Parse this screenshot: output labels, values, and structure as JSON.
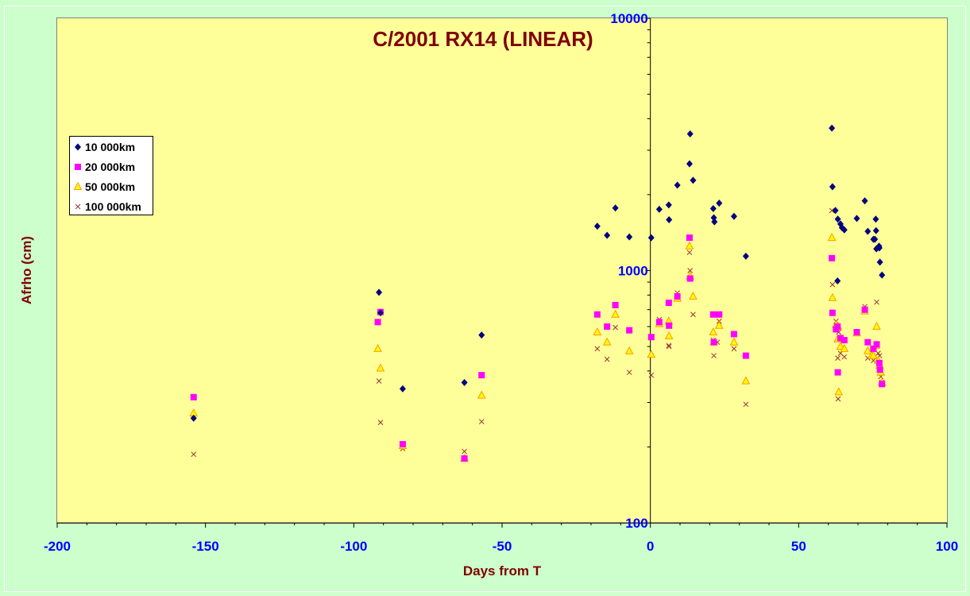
{
  "chart_data": {
    "type": "scatter",
    "title": "C/2001 RX14 (LINEAR)",
    "xlabel": "Days from T",
    "ylabel": "Afrho (cm)",
    "xlim": [
      -200,
      100
    ],
    "ylim": [
      100,
      10000
    ],
    "y_scale": "log",
    "x_ticks": [
      -200,
      -150,
      -100,
      -50,
      0,
      50,
      100
    ],
    "x_tick_labels": [
      "-200",
      "-150",
      "-100",
      "-50",
      "0",
      "50",
      "100"
    ],
    "y_ticks": [
      100,
      1000,
      10000
    ],
    "y_tick_labels": [
      "100",
      "1000",
      "10000"
    ],
    "grid": false,
    "legend_position": "left",
    "plot_background": "#ffff99",
    "figure_background": "#ccffcc",
    "series": [
      {
        "name": "10 000km",
        "marker": "diamond",
        "color": "#000080",
        "points": [
          [
            -154,
            260
          ],
          [
            -91.5,
            820
          ],
          [
            -91,
            680
          ],
          [
            -83.5,
            340
          ],
          [
            -62.7,
            360
          ],
          [
            -56.9,
            555
          ],
          [
            -17.9,
            1500
          ],
          [
            -14.6,
            1380
          ],
          [
            -11.8,
            1770
          ],
          [
            -7.1,
            1360
          ],
          [
            0.3,
            1350
          ],
          [
            3,
            1750
          ],
          [
            6.2,
            1820
          ],
          [
            6.3,
            1590
          ],
          [
            9.1,
            2180
          ],
          [
            13.2,
            2650
          ],
          [
            13.4,
            3480
          ],
          [
            14.4,
            2280
          ],
          [
            21.2,
            1760
          ],
          [
            21.4,
            1620
          ],
          [
            21.6,
            1560
          ],
          [
            23.2,
            1850
          ],
          [
            28.2,
            1640
          ],
          [
            32.2,
            1140
          ],
          [
            61.2,
            3670
          ],
          [
            61.4,
            2150
          ],
          [
            62.4,
            1730
          ],
          [
            63.1,
            910
          ],
          [
            63.2,
            1600
          ],
          [
            64.1,
            1530
          ],
          [
            64.6,
            1480
          ],
          [
            65.4,
            1450
          ],
          [
            69.6,
            1610
          ],
          [
            72.3,
            1890
          ],
          [
            73.3,
            1430
          ],
          [
            75.2,
            1330
          ],
          [
            75.7,
            1330
          ],
          [
            76,
            1600
          ],
          [
            76.1,
            1440
          ],
          [
            76.2,
            1220
          ],
          [
            77.1,
            1250
          ],
          [
            77.2,
            1230
          ],
          [
            77.4,
            1080
          ],
          [
            78.1,
            960
          ]
        ]
      },
      {
        "name": "20 000km",
        "marker": "square",
        "color": "#ff00ff",
        "points": [
          [
            -154,
            315
          ],
          [
            -91.9,
            625
          ],
          [
            -91,
            685
          ],
          [
            -83.5,
            205
          ],
          [
            -62.7,
            180
          ],
          [
            -56.9,
            385
          ],
          [
            -17.9,
            670
          ],
          [
            -14.6,
            600
          ],
          [
            -11.8,
            730
          ],
          [
            -7.1,
            580
          ],
          [
            0.3,
            545
          ],
          [
            3,
            625
          ],
          [
            6.2,
            745
          ],
          [
            6.3,
            605
          ],
          [
            9.1,
            790
          ],
          [
            13.2,
            1350
          ],
          [
            13.4,
            930
          ],
          [
            21.2,
            670
          ],
          [
            21.4,
            520
          ],
          [
            23.2,
            670
          ],
          [
            28.2,
            560
          ],
          [
            32.2,
            460
          ],
          [
            61.2,
            1120
          ],
          [
            61.4,
            680
          ],
          [
            62.6,
            585
          ],
          [
            63.1,
            600
          ],
          [
            63.2,
            395
          ],
          [
            64.1,
            540
          ],
          [
            65.4,
            530
          ],
          [
            69.6,
            570
          ],
          [
            72.3,
            700
          ],
          [
            73.3,
            520
          ],
          [
            75.2,
            490
          ],
          [
            76.3,
            510
          ],
          [
            77.2,
            430
          ],
          [
            77.4,
            405
          ],
          [
            78.1,
            355
          ]
        ]
      },
      {
        "name": "50 000km",
        "marker": "triangle",
        "color": "#ff9900",
        "points": [
          [
            -154,
            272
          ],
          [
            -91.9,
            490
          ],
          [
            -91,
            410
          ],
          [
            -83.5,
            202
          ],
          [
            -62.7,
            180
          ],
          [
            -56.9,
            320
          ],
          [
            -17.9,
            570
          ],
          [
            -14.6,
            520
          ],
          [
            -11.8,
            670
          ],
          [
            -7.1,
            480
          ],
          [
            0.3,
            465
          ],
          [
            3,
            615
          ],
          [
            6.2,
            630
          ],
          [
            6.3,
            550
          ],
          [
            9.1,
            775
          ],
          [
            13.2,
            1250
          ],
          [
            13.4,
            950
          ],
          [
            14.4,
            790
          ],
          [
            21.2,
            570
          ],
          [
            21.4,
            520
          ],
          [
            23.2,
            605
          ],
          [
            28.2,
            520
          ],
          [
            32.2,
            365
          ],
          [
            61.2,
            1350
          ],
          [
            61.4,
            780
          ],
          [
            62.6,
            610
          ],
          [
            63.2,
            535
          ],
          [
            63.3,
            600
          ],
          [
            63.5,
            330
          ],
          [
            64.1,
            500
          ],
          [
            65.4,
            490
          ],
          [
            69.6,
            565
          ],
          [
            72.3,
            690
          ],
          [
            73.3,
            480
          ],
          [
            74.6,
            460
          ],
          [
            75.2,
            460
          ],
          [
            76.1,
            505
          ],
          [
            76.3,
            600
          ],
          [
            76.8,
            440
          ],
          [
            77.3,
            420
          ],
          [
            77.7,
            395
          ],
          [
            78.1,
            360
          ]
        ]
      },
      {
        "name": "100 000km",
        "marker": "x",
        "color": "#993333",
        "points": [
          [
            -154,
            187
          ],
          [
            -91.5,
            365
          ],
          [
            -91,
            250
          ],
          [
            -83.5,
            197
          ],
          [
            -62.7,
            192
          ],
          [
            -56.9,
            252
          ],
          [
            -17.9,
            490
          ],
          [
            -14.6,
            445
          ],
          [
            -11.8,
            595
          ],
          [
            -7.1,
            395
          ],
          [
            0.3,
            385
          ],
          [
            3,
            640
          ],
          [
            6.2,
            505
          ],
          [
            6.3,
            500
          ],
          [
            9.1,
            815
          ],
          [
            13.2,
            1180
          ],
          [
            13.4,
            1000
          ],
          [
            14.4,
            670
          ],
          [
            21.2,
            530
          ],
          [
            21.4,
            460
          ],
          [
            22.6,
            520
          ],
          [
            23.2,
            630
          ],
          [
            28.2,
            490
          ],
          [
            32.2,
            295
          ],
          [
            61.2,
            1730
          ],
          [
            61.4,
            880
          ],
          [
            62.6,
            630
          ],
          [
            63.2,
            450
          ],
          [
            63.3,
            310
          ],
          [
            63.5,
            570
          ],
          [
            64.1,
            470
          ],
          [
            65.4,
            455
          ],
          [
            69.6,
            570
          ],
          [
            72.3,
            720
          ],
          [
            73.3,
            450
          ],
          [
            75.2,
            440
          ],
          [
            76.3,
            750
          ],
          [
            76.8,
            470
          ],
          [
            77.3,
            460
          ],
          [
            77.7,
            380
          ],
          [
            78.1,
            360
          ]
        ]
      }
    ]
  }
}
